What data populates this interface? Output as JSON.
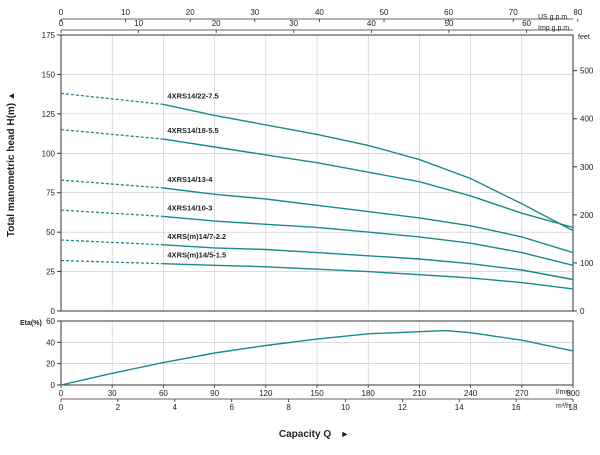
{
  "colors": {
    "curve": "#1a8a8a",
    "axis": "#333333",
    "grid": "#c8c8c8",
    "text": "#222222"
  },
  "chart_data": [
    {
      "type": "line",
      "ylabel": "Total manometric head H(m)",
      "ylabel_marker": "▲",
      "ylim": [
        0,
        175
      ],
      "y_ticks": [
        0,
        25,
        50,
        75,
        100,
        125,
        150,
        175
      ],
      "xlim": [
        0,
        300
      ],
      "right_axis": {
        "label": "feet",
        "ticks": [
          0,
          100,
          200,
          300,
          400,
          500
        ]
      },
      "top_axes": [
        {
          "label": "US g.p.m",
          "ticks": [
            0,
            10,
            20,
            30,
            40,
            50,
            60,
            70,
            80
          ]
        },
        {
          "label": "Imp g.p.m",
          "ticks": [
            0,
            10,
            20,
            30,
            40,
            50,
            60
          ]
        }
      ],
      "grid": true,
      "series": [
        {
          "name": "4XRS14/22-7.5",
          "dashed": {
            "x": [
              0,
              60
            ],
            "y": [
              138,
              131
            ]
          },
          "solid": {
            "x": [
              60,
              90,
              120,
              150,
              180,
              210,
              240,
              270,
              300
            ],
            "y": [
              131,
              124,
              118,
              112,
              105,
              96,
              84,
              68,
              51
            ]
          }
        },
        {
          "name": "4XRS14/18-5.5",
          "dashed": {
            "x": [
              0,
              60
            ],
            "y": [
              115,
              109
            ]
          },
          "solid": {
            "x": [
              60,
              90,
              120,
              150,
              180,
              210,
              240,
              270,
              300
            ],
            "y": [
              109,
              104,
              99,
              94,
              88,
              82,
              73,
              62,
              53
            ]
          }
        },
        {
          "name": "4XRS14/13-4",
          "dashed": {
            "x": [
              0,
              60
            ],
            "y": [
              83,
              78
            ]
          },
          "solid": {
            "x": [
              60,
              90,
              120,
              150,
              180,
              210,
              240,
              270,
              300
            ],
            "y": [
              78,
              74,
              71,
              67,
              63,
              59,
              54,
              47,
              37
            ]
          }
        },
        {
          "name": "4XRS14/10-3",
          "dashed": {
            "x": [
              0,
              60
            ],
            "y": [
              64,
              60
            ]
          },
          "solid": {
            "x": [
              60,
              90,
              120,
              150,
              180,
              210,
              240,
              270,
              300
            ],
            "y": [
              60,
              57,
              55,
              53,
              50,
              47,
              43,
              37,
              29
            ]
          }
        },
        {
          "name": "4XRS(m)14/7-2.2",
          "dashed": {
            "x": [
              0,
              60
            ],
            "y": [
              45,
              42
            ]
          },
          "solid": {
            "x": [
              60,
              90,
              120,
              150,
              180,
              210,
              240,
              270,
              300
            ],
            "y": [
              42,
              40,
              39,
              37,
              35,
              33,
              30,
              26,
              20
            ]
          }
        },
        {
          "name": "4XRS(m)14/5-1.5",
          "dashed": {
            "x": [
              0,
              60
            ],
            "y": [
              32,
              30
            ]
          },
          "solid": {
            "x": [
              60,
              90,
              120,
              150,
              180,
              210,
              240,
              270,
              300
            ],
            "y": [
              30,
              29,
              28,
              26.5,
              25,
              23,
              21,
              18,
              14
            ]
          }
        }
      ]
    },
    {
      "type": "line",
      "ylabel": "Eta(%)",
      "ylim": [
        0,
        60
      ],
      "y_ticks": [
        0,
        20,
        40,
        60
      ],
      "xlim": [
        0,
        300
      ],
      "grid": true,
      "series": [
        {
          "x": [
            0,
            30,
            60,
            90,
            120,
            150,
            180,
            210,
            225,
            240,
            270,
            300
          ],
          "y": [
            0,
            11,
            21,
            30,
            37,
            43,
            48,
            50,
            51,
            49,
            42,
            32
          ]
        }
      ],
      "x_axes": [
        {
          "label": "l/min",
          "ticks": [
            0,
            30,
            60,
            90,
            120,
            150,
            180,
            210,
            240,
            270,
            300
          ]
        },
        {
          "label": "m³/h",
          "ticks": [
            0,
            2,
            4,
            6,
            8,
            10,
            12,
            14,
            16,
            18
          ]
        }
      ],
      "xlabel": "Capacity Q",
      "xlabel_marker": "►"
    }
  ]
}
